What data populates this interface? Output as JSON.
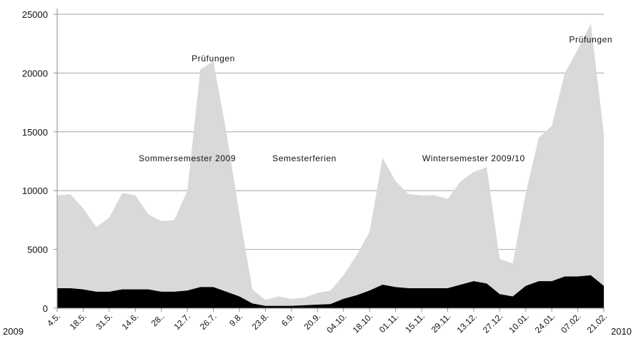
{
  "chart_data": {
    "type": "area",
    "stacked": false,
    "ylim": [
      0,
      25000
    ],
    "y_ticks": [
      0,
      5000,
      10000,
      15000,
      20000,
      25000
    ],
    "grid": "horizontal",
    "legend": "none",
    "x": [
      "4.5.",
      "11.5.",
      "18.5.",
      "25.5.",
      "31.5.",
      "7.6.",
      "14.6.",
      "21.6.",
      "28..",
      "5.7.",
      "12.7.",
      "19.7.",
      "26.7.",
      "2.8.",
      "9.8.",
      "16.8.",
      "23.8.",
      "30.8.",
      "6.9.",
      "13.9.",
      "20.9.",
      "27.9.",
      "04.10.",
      "11.10.",
      "18.10.",
      "25.10.",
      "01.11.",
      "08.11.",
      "15.11.",
      "22.11.",
      "29.11.",
      "06.12.",
      "13.12.",
      "20.12.",
      "27.12.",
      "03.01.",
      "10.01.",
      "17.01.",
      "24.01.",
      "31.01.",
      "07.02.",
      "14.02.",
      "21.02."
    ],
    "x_tick_labels": [
      "4.5.",
      "18.5.",
      "31.5.",
      "14.6.",
      "28..",
      "12.7.",
      "26.7.",
      "9.8.",
      "23.8.",
      "6.9.",
      "20.9.",
      "04.10.",
      "18.10.",
      "01.11.",
      "15.11.",
      "29.11.",
      "13.12.",
      "27.12.",
      "10.01.",
      "24.01.",
      "07.02.",
      "21.02."
    ],
    "x_start_label": "2009",
    "x_end_label": "2010",
    "series": [
      {
        "color": "#d9d9d9",
        "values": [
          9600,
          9700,
          8500,
          6900,
          7700,
          9800,
          9600,
          8000,
          7400,
          7500,
          10000,
          20300,
          21000,
          15000,
          8000,
          1600,
          700,
          1000,
          800,
          900,
          1300,
          1500,
          2800,
          4500,
          6500,
          12800,
          10800,
          9700,
          9600,
          9600,
          9300,
          10800,
          11600,
          12000,
          4200,
          3800,
          9800,
          14500,
          15500,
          20000,
          22000,
          24200,
          14800
        ]
      },
      {
        "color": "#000000",
        "values": [
          1700,
          1700,
          1600,
          1400,
          1400,
          1600,
          1600,
          1600,
          1400,
          1400,
          1500,
          1800,
          1800,
          1400,
          1000,
          400,
          200,
          200,
          200,
          250,
          300,
          350,
          800,
          1100,
          1500,
          2000,
          1800,
          1700,
          1700,
          1700,
          1700,
          2000,
          2300,
          2100,
          1200,
          1000,
          1900,
          2300,
          2300,
          2700,
          2700,
          2800,
          1900
        ]
      }
    ],
    "annotations": [
      {
        "text": "Sommersemester 2009",
        "x": "12.7.",
        "y": 12500
      },
      {
        "text": "Prüfungen",
        "x": "26.7.",
        "y": 21000
      },
      {
        "text": "Semesterferien",
        "x": "13.9.",
        "y": 12500
      },
      {
        "text": "Wintersemester 2009/10",
        "x": "13.12.",
        "y": 12500
      },
      {
        "text": "Prüfungen",
        "x": "14.02.",
        "y": 22600
      }
    ]
  }
}
